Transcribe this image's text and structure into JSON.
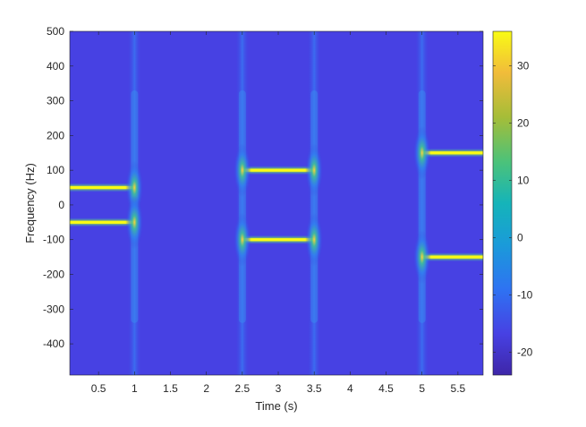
{
  "chart_data": {
    "type": "heatmap",
    "title": "",
    "xlabel": "Time (s)",
    "ylabel": "Frequency (Hz)",
    "xlim": [
      0.1,
      5.85
    ],
    "ylim": [
      -490,
      500
    ],
    "xticks": [
      0.5,
      1,
      1.5,
      2,
      2.5,
      3,
      3.5,
      4,
      4.5,
      5,
      5.5
    ],
    "xtick_labels": [
      "0.5",
      "1",
      "1.5",
      "2",
      "2.5",
      "3",
      "3.5",
      "4",
      "4.5",
      "5",
      "5.5"
    ],
    "yticks": [
      -400,
      -300,
      -200,
      -100,
      0,
      100,
      200,
      300,
      400,
      500
    ],
    "ytick_labels": [
      "-400",
      "-300",
      "-200",
      "-100",
      "0",
      "100",
      "200",
      "300",
      "400",
      "500"
    ],
    "colorbar": {
      "clim": [
        -24,
        36
      ],
      "ticks": [
        -20,
        -10,
        0,
        10,
        20,
        30
      ],
      "tick_labels": [
        "-20",
        "-10",
        "0",
        "10",
        "20",
        "30"
      ],
      "colormap": "parula"
    },
    "background_level": -20,
    "tones": [
      {
        "t_start": 0.1,
        "t_end": 1.0,
        "freq": 50,
        "level": 36
      },
      {
        "t_start": 0.1,
        "t_end": 1.0,
        "freq": -50,
        "level": 36
      },
      {
        "t_start": 2.5,
        "t_end": 3.5,
        "freq": 100,
        "level": 36
      },
      {
        "t_start": 2.5,
        "t_end": 3.5,
        "freq": -100,
        "level": 36
      },
      {
        "t_start": 5.0,
        "t_end": 5.85,
        "freq": 150,
        "level": 36
      },
      {
        "t_start": 5.0,
        "t_end": 5.85,
        "freq": -150,
        "level": 36
      }
    ],
    "transients": [
      1.0,
      2.5,
      3.5,
      5.0
    ],
    "grid": false
  }
}
